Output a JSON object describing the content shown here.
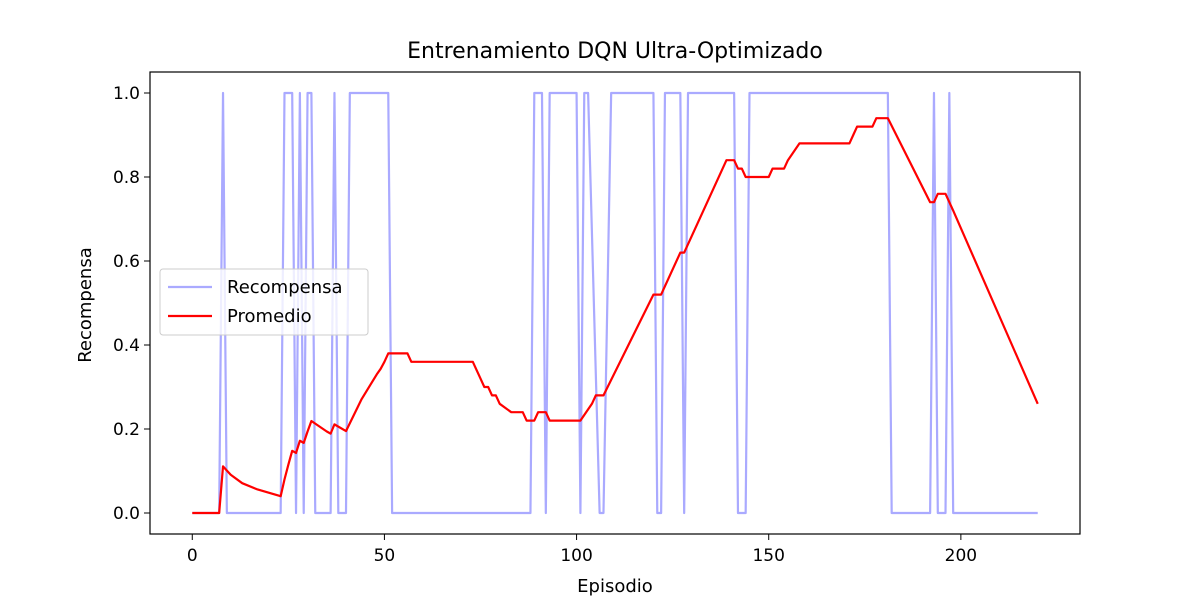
{
  "chart_data": {
    "type": "line",
    "title": "Entrenamiento DQN Ultra-Optimizado",
    "xlabel": "Episodio",
    "ylabel": "Recompensa",
    "xlim": [
      -11,
      231
    ],
    "ylim": [
      -0.05,
      1.05
    ],
    "xticks": [
      0,
      50,
      100,
      150,
      200
    ],
    "xtick_labels": [
      "0",
      "50",
      "100",
      "150",
      "200"
    ],
    "yticks": [
      0.0,
      0.2,
      0.4,
      0.6,
      0.8,
      1.0
    ],
    "ytick_labels": [
      "0.0",
      "0.2",
      "0.4",
      "0.6",
      "0.8",
      "1.0"
    ],
    "grid": false,
    "legend_position": "center-left",
    "series": [
      {
        "name": "Recompensa",
        "color": "#aaaaff",
        "x": [
          0,
          7,
          8,
          9,
          23,
          24,
          26,
          27,
          28,
          29,
          30,
          31,
          32,
          36,
          37,
          38,
          40,
          41,
          51,
          52,
          88,
          89,
          91,
          92,
          93,
          94,
          100,
          101,
          102,
          103,
          106,
          107,
          109,
          110,
          120,
          121,
          122,
          123,
          127,
          128,
          129,
          141,
          142,
          144,
          145,
          181,
          182,
          192,
          193,
          194,
          196,
          197,
          198,
          220
        ],
        "y": [
          0,
          0,
          1,
          0,
          0,
          1,
          1,
          0,
          1,
          0,
          1,
          1,
          0,
          0,
          1,
          0,
          0,
          1,
          1,
          0,
          0,
          1,
          1,
          0,
          1,
          1,
          1,
          0,
          1,
          1,
          0,
          0,
          1,
          1,
          1,
          0,
          0,
          1,
          1,
          0,
          1,
          1,
          0,
          0,
          1,
          1,
          0,
          0,
          1,
          0,
          0,
          1,
          0,
          0
        ]
      },
      {
        "name": "Promedio",
        "color": "#ff0000",
        "x": [
          0,
          7,
          8,
          10,
          13,
          17,
          20,
          23,
          24,
          25,
          26,
          27,
          28,
          29,
          30,
          31,
          35,
          36,
          37,
          40,
          44,
          48,
          49,
          50,
          51,
          56,
          57,
          73,
          74,
          75,
          76,
          77,
          78,
          79,
          80,
          83,
          86,
          87,
          89,
          90,
          91,
          92,
          93,
          101,
          104,
          105,
          107,
          120,
          122,
          127,
          128,
          129,
          130,
          139,
          141,
          142,
          143,
          144,
          149,
          150,
          151,
          154,
          155,
          158,
          171,
          172,
          173,
          177,
          178,
          181,
          192,
          193,
          194,
          196,
          197,
          198,
          220
        ],
        "y": [
          0,
          0,
          0.111,
          0.091,
          0.071,
          0.056,
          0.048,
          0.04,
          0.08,
          0.115,
          0.148,
          0.143,
          0.172,
          0.167,
          0.194,
          0.219,
          0.194,
          0.189,
          0.211,
          0.195,
          0.27,
          0.33,
          0.343,
          0.36,
          0.38,
          0.38,
          0.36,
          0.36,
          0.34,
          0.32,
          0.3,
          0.3,
          0.28,
          0.28,
          0.26,
          0.24,
          0.24,
          0.22,
          0.22,
          0.24,
          0.24,
          0.24,
          0.22,
          0.22,
          0.26,
          0.28,
          0.28,
          0.52,
          0.52,
          0.62,
          0.62,
          0.64,
          0.66,
          0.84,
          0.84,
          0.82,
          0.82,
          0.8,
          0.8,
          0.8,
          0.82,
          0.82,
          0.84,
          0.88,
          0.88,
          0.9,
          0.92,
          0.92,
          0.94,
          0.94,
          0.74,
          0.74,
          0.76,
          0.76,
          0.74,
          0.72,
          0.26
        ]
      }
    ]
  }
}
